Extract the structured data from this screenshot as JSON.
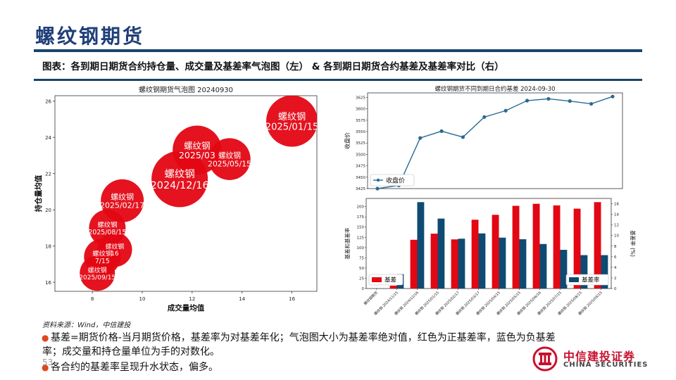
{
  "page": {
    "title": "螺纹钢期货",
    "subtitle": "图表：各到期日期货合约持仓量、成交量及基差率气泡图（左） & 各到期日期货合约基差及基差率对比（右）",
    "source": "资料来源：Wind，中信建投",
    "notes": [
      "基差=期货价格-当月期货价格，基差率为对基差年化；气泡图大小为基差率绝对值，红色为正基差率，蓝色为负基差",
      "率；成交量和持仓量单位为手的对数化。",
      "各合约的基差率呈现升水状态，偏多。"
    ],
    "page_number": "53",
    "logo": {
      "cn": "中信建投证券",
      "en": "CHINA SECURITIES"
    }
  },
  "colors": {
    "red": "#e30613",
    "blue": "#0f4a72",
    "line": "#2b6a93",
    "accent": "#1f3f78"
  },
  "chart_data": [
    {
      "type": "scatter",
      "title": "螺纹钢期货气泡图 20240930",
      "xlabel": "成交量均值",
      "ylabel": "持仓量均值",
      "xlim": [
        6.5,
        17
      ],
      "ylim": [
        15.5,
        26.3
      ],
      "xticks": [
        8,
        10,
        12,
        14,
        16
      ],
      "yticks": [
        16,
        18,
        20,
        22,
        24,
        26
      ],
      "bubble_label_prefix": "螺纹钢",
      "points": [
        {
          "label": "2025/01/15",
          "x": 16.0,
          "y": 24.9,
          "size": 14.6,
          "color": "red"
        },
        {
          "label": "2025/03",
          "x": 12.2,
          "y": 23.3,
          "size": 13.9,
          "color": "red"
        },
        {
          "label": "2025/05/15",
          "x": 13.5,
          "y": 22.8,
          "size": 11.9,
          "color": "red"
        },
        {
          "label": "2024/12/16",
          "x": 11.5,
          "y": 21.7,
          "size": 16.0,
          "color": "red"
        },
        {
          "label": "2025/02/17",
          "x": 9.2,
          "y": 20.5,
          "size": 12.2,
          "color": "red"
        },
        {
          "label": "2025/08/15",
          "x": 8.6,
          "y": 19.0,
          "size": 10.4,
          "color": "red"
        },
        {
          "label": "16",
          "x": 8.9,
          "y": 17.8,
          "size": 9.8,
          "color": "red"
        },
        {
          "label": "7/15",
          "x": 8.4,
          "y": 17.4,
          "size": 10.4,
          "color": "red"
        },
        {
          "label": "2025/09/15",
          "x": 8.2,
          "y": 16.5,
          "size": 10.0,
          "color": "red"
        }
      ]
    },
    {
      "type": "line",
      "title": "螺纹钢期货不同到期日合约基差 2024-09-30",
      "ylabel": "收盘价",
      "ylim": [
        3425,
        3635
      ],
      "yticks": [
        3425,
        3450,
        3475,
        3500,
        3525,
        3550,
        3575,
        3600,
        3625
      ],
      "series": [
        {
          "name": "收盘价",
          "values": [
            3425,
            3432,
            3536,
            3551,
            3538,
            3582,
            3596,
            3618,
            3622,
            3617,
            3611,
            3627
          ]
        }
      ]
    },
    {
      "type": "bar",
      "ylabel_left": "基差和基差率",
      "ylabel_right": "基差率 (%)",
      "ylim_left": [
        0,
        220
      ],
      "ylim_right": [
        0,
        17
      ],
      "yticks_left": [
        0,
        25,
        50,
        75,
        100,
        125,
        150,
        175,
        200
      ],
      "yticks_right": [
        0,
        2,
        4,
        6,
        8,
        10,
        12,
        14,
        16
      ],
      "categories": [
        "螺纹钢期货",
        "螺纹钢 2024/11/15",
        "螺纹钢 2024/12/16",
        "螺纹钢 2025/01/15",
        "螺纹钢 2025/02/17",
        "螺纹钢 2025/03/17",
        "螺纹钢 2025/04/15",
        "螺纹钢 2025/05/15",
        "螺纹钢 2025/06/16",
        "螺纹钢 2025/07/15",
        "螺纹钢 2025/08/15",
        "螺纹钢 2025/09/15"
      ],
      "series": [
        {
          "name": "基差",
          "axis": "left",
          "values": [
            0,
            7,
            119,
            134,
            120,
            168,
            180,
            202,
            207,
            203,
            195,
            211
          ]
        },
        {
          "name": "基差率",
          "axis": "right",
          "values": [
            0,
            2.7,
            16.3,
            13.2,
            9.4,
            10.4,
            9.6,
            9.3,
            8.4,
            7.3,
            6.3,
            6.3
          ]
        }
      ]
    }
  ]
}
